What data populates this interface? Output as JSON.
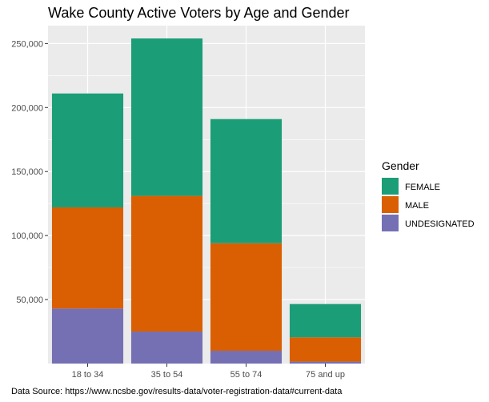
{
  "chart_data": {
    "type": "bar",
    "stacked": true,
    "title": "Wake County Active Voters by Age and Gender",
    "xlabel": "",
    "ylabel": "",
    "categories": [
      "18 to 34",
      "35 to 54",
      "55 to 74",
      "75 and up"
    ],
    "series": [
      {
        "name": "FEMALE",
        "values": [
          89000,
          123000,
          97000,
          26000
        ],
        "color": "#1B9E77"
      },
      {
        "name": "MALE",
        "values": [
          79000,
          106000,
          84000,
          19000
        ],
        "color": "#D95F02"
      },
      {
        "name": "UNDESIGNATED",
        "values": [
          43000,
          25000,
          10000,
          1500
        ],
        "color": "#7570B3"
      }
    ],
    "ylim": [
      0,
      264000
    ],
    "yticks": [
      50000,
      100000,
      150000,
      200000,
      250000
    ],
    "ytick_labels": [
      "50,000",
      "100,000",
      "150,000",
      "200,000",
      "250,000"
    ],
    "grid": true,
    "legend": {
      "title": "Gender",
      "placement": "right"
    },
    "caption": "Data Source: https://www.ncsbe.gov/results-data/voter-registration-data#current-data"
  }
}
